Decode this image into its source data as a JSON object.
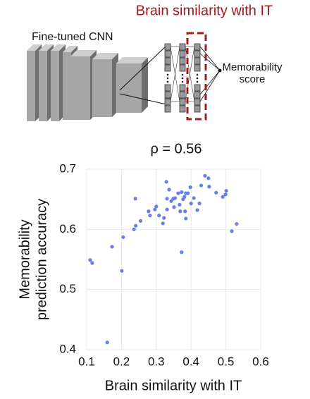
{
  "diagram": {
    "title": "Brain similarity with IT",
    "network_label": "Fine-tuned CNN",
    "output_label": [
      "Memorability",
      "score"
    ]
  },
  "chart_data": {
    "type": "scatter",
    "title": "ρ = 0.56",
    "xlabel": "Brain similarity with IT",
    "ylabel": [
      "Memorability",
      "prediction accuracy"
    ],
    "color": "#6b7de8",
    "grid": true,
    "xlim": [
      0.1,
      0.6
    ],
    "ylim": [
      0.4,
      0.7
    ],
    "xticks": [
      0.1,
      0.2,
      0.3,
      0.4,
      0.5,
      0.6
    ],
    "yticks": [
      0.4,
      0.5,
      0.6,
      0.7
    ],
    "x": [
      0.11,
      0.116,
      0.173,
      0.205,
      0.201,
      0.159,
      0.236,
      0.241,
      0.24,
      0.255,
      0.278,
      0.282,
      0.296,
      0.3,
      0.308,
      0.319,
      0.322,
      0.331,
      0.331,
      0.329,
      0.337,
      0.343,
      0.351,
      0.354,
      0.363,
      0.367,
      0.369,
      0.373,
      0.377,
      0.381,
      0.385,
      0.383,
      0.385,
      0.373,
      0.391,
      0.4,
      0.408,
      0.398,
      0.424,
      0.418,
      0.429,
      0.44,
      0.45,
      0.452,
      0.472,
      0.491,
      0.499,
      0.501,
      0.517,
      0.531,
      0.349
    ],
    "y": [
      0.549,
      0.544,
      0.571,
      0.587,
      0.531,
      0.412,
      0.6,
      0.606,
      0.651,
      0.614,
      0.63,
      0.623,
      0.633,
      0.638,
      0.623,
      0.61,
      0.619,
      0.633,
      0.651,
      0.679,
      0.666,
      0.647,
      0.637,
      0.652,
      0.66,
      0.641,
      0.63,
      0.662,
      0.65,
      0.654,
      0.66,
      0.63,
      0.618,
      0.562,
      0.66,
      0.643,
      0.652,
      0.67,
      0.643,
      0.632,
      0.673,
      0.689,
      0.685,
      0.671,
      0.661,
      0.654,
      0.658,
      0.664,
      0.597,
      0.609,
      0.651
    ]
  }
}
